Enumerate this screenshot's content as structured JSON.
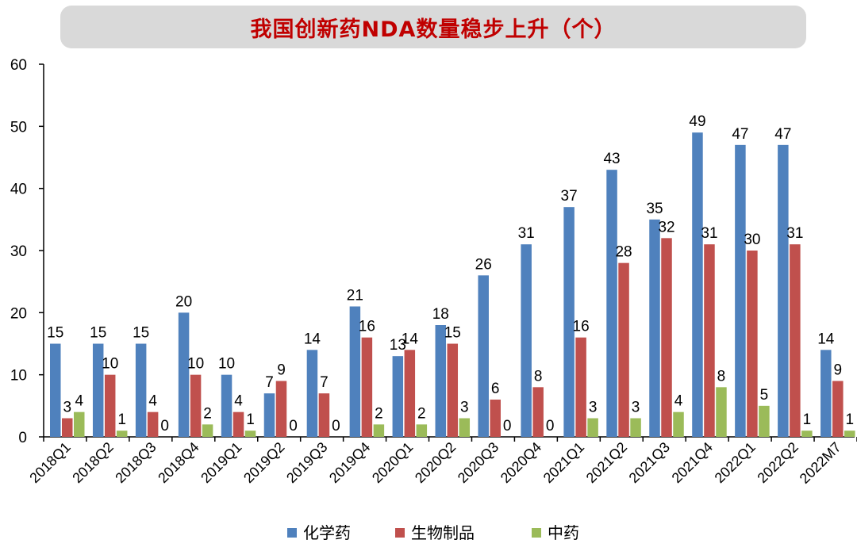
{
  "chart_data": {
    "type": "bar",
    "title": "我国创新药NDA数量稳步上升（个）",
    "xlabel": "",
    "ylabel": "",
    "ylim": [
      0,
      60
    ],
    "yticks": [
      0,
      10,
      20,
      30,
      40,
      50,
      60
    ],
    "legend_position": "bottom",
    "categories": [
      "2018Q1",
      "2018Q2",
      "2018Q3",
      "2018Q4",
      "2019Q1",
      "2019Q2",
      "2019Q3",
      "2019Q4",
      "2020Q1",
      "2020Q2",
      "2020Q3",
      "2020Q4",
      "2021Q1",
      "2021Q2",
      "2021Q3",
      "2021Q4",
      "2022Q1",
      "2022Q2",
      "2022M7"
    ],
    "series": [
      {
        "name": "化学药",
        "color": "#4f81bd",
        "values": [
          15,
          15,
          15,
          20,
          10,
          7,
          14,
          21,
          13,
          18,
          26,
          31,
          37,
          43,
          35,
          49,
          47,
          47,
          14
        ]
      },
      {
        "name": "生物制品",
        "color": "#c0504d",
        "values": [
          3,
          10,
          4,
          10,
          4,
          9,
          7,
          16,
          14,
          15,
          6,
          8,
          16,
          28,
          32,
          31,
          30,
          31,
          9
        ]
      },
      {
        "name": "中药",
        "color": "#9bbb59",
        "values": [
          4,
          1,
          0,
          2,
          1,
          0,
          0,
          2,
          2,
          3,
          0,
          0,
          3,
          3,
          4,
          8,
          5,
          1,
          1
        ]
      }
    ]
  }
}
